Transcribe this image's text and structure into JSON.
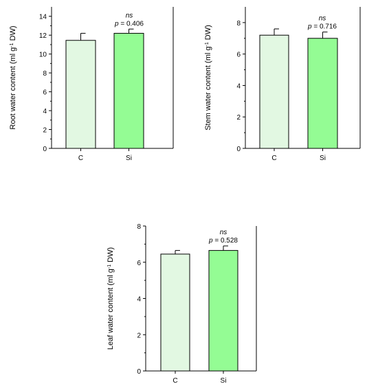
{
  "chart_data": [
    {
      "type": "bar",
      "categories": [
        "C",
        "Si"
      ],
      "values": [
        11.45,
        12.2
      ],
      "errors": [
        0.75,
        0.45
      ],
      "ylabel_main": "Root water content (ml g",
      "ylabel_sup": "-1",
      "ylabel_tail": " DW)",
      "ylim": [
        0,
        15
      ],
      "yticks": [
        0,
        2,
        4,
        6,
        8,
        10,
        12,
        14
      ],
      "annotation_ns": "ns",
      "annotation_p": "p",
      "annotation_value": " = 0.406"
    },
    {
      "type": "bar",
      "categories": [
        "C",
        "Si"
      ],
      "values": [
        7.2,
        7.0
      ],
      "errors": [
        0.4,
        0.4
      ],
      "ylabel_main": "Stem water content (ml g",
      "ylabel_sup": "-1",
      "ylabel_tail": " DW)",
      "ylim": [
        0,
        9
      ],
      "yticks": [
        0,
        2,
        4,
        6,
        8
      ],
      "annotation_ns": "ns",
      "annotation_p": "p",
      "annotation_value": " = 0.716"
    },
    {
      "type": "bar",
      "categories": [
        "C",
        "Si"
      ],
      "values": [
        6.45,
        6.65
      ],
      "errors": [
        0.2,
        0.25
      ],
      "ylabel_main": "Leaf water content (ml g",
      "ylabel_sup": "-1",
      "ylabel_tail": " DW)",
      "ylim": [
        0,
        8
      ],
      "yticks": [
        0,
        2,
        4,
        6,
        8
      ],
      "annotation_ns": "ns",
      "annotation_p": "p",
      "annotation_value": " = 0.528"
    }
  ],
  "colors": {
    "bar_c": "#e2f8e2",
    "bar_si": "#94fc94"
  }
}
